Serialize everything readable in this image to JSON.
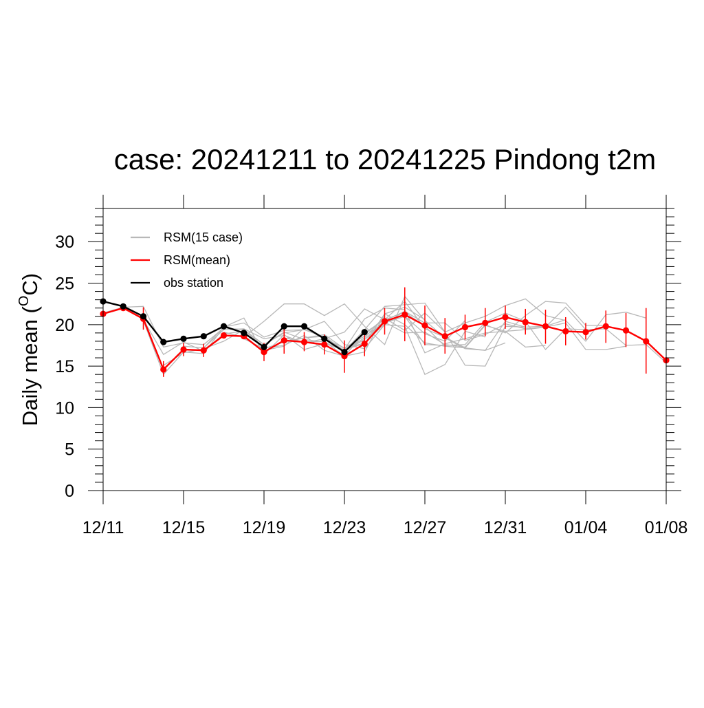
{
  "chart_data": {
    "type": "line",
    "title": "case: 20241211 to 20241225 Pindong t2m",
    "xlabel": "",
    "ylabel_main": "Daily mean (",
    "ylabel_sup": "O",
    "ylabel_unit": "C)",
    "ylim": [
      0,
      34
    ],
    "yticks": [
      0,
      5,
      10,
      15,
      20,
      25,
      30
    ],
    "x_range_days": [
      0,
      28
    ],
    "xtick_days": [
      0,
      4,
      8,
      12,
      16,
      20,
      24,
      28
    ],
    "xtick_labels": [
      "12/11",
      "12/15",
      "12/19",
      "12/23",
      "12/27",
      "12/31",
      "01/04",
      "01/08"
    ],
    "grid": false,
    "legend_position": "top-left",
    "colors": {
      "ensemble": "#b8b8b8",
      "mean": "#ff0000",
      "obs": "#000000"
    },
    "legend": [
      {
        "key": "ens",
        "label": "RSM(15 case)",
        "color": "#b8b8b8"
      },
      {
        "key": "mean",
        "label": "RSM(mean)",
        "color": "#ff0000"
      },
      {
        "key": "obs",
        "label": "obs station",
        "color": "#000000"
      }
    ],
    "obs": {
      "name": "obs station",
      "x": [
        0,
        1,
        2,
        3,
        4,
        5,
        6,
        7,
        8,
        9,
        10,
        11,
        12,
        13
      ],
      "values": [
        22.8,
        22.2,
        21.0,
        17.9,
        18.3,
        18.6,
        19.8,
        19.0,
        17.3,
        19.8,
        19.8,
        18.3,
        16.7,
        19.1
      ]
    },
    "mean": {
      "name": "RSM(mean)",
      "x": [
        0,
        1,
        2,
        3,
        4,
        5,
        6,
        7,
        8,
        9,
        10,
        11,
        12,
        13,
        14,
        15,
        16,
        17,
        18,
        19,
        20,
        21,
        22,
        23,
        24,
        25,
        26,
        27,
        28
      ],
      "values": [
        21.3,
        22.0,
        20.7,
        14.6,
        17.0,
        16.9,
        18.7,
        18.6,
        16.7,
        18.1,
        17.9,
        17.6,
        16.2,
        17.7,
        20.4,
        21.2,
        19.9,
        18.6,
        19.7,
        20.2,
        20.9,
        20.3,
        19.8,
        19.2,
        19.1,
        19.8,
        19.3,
        18.0,
        15.7
      ],
      "err_low": [
        null,
        null,
        19.4,
        13.7,
        16.2,
        16.1,
        null,
        null,
        15.6,
        16.5,
        16.8,
        16.4,
        14.2,
        16.2,
        18.8,
        18.0,
        17.5,
        16.5,
        18.2,
        18.6,
        19.5,
        18.8,
        17.7,
        17.5,
        18.2,
        17.8,
        17.3,
        14.1,
        null
      ],
      "err_high": [
        null,
        null,
        22.1,
        15.6,
        17.8,
        17.7,
        null,
        null,
        17.8,
        19.7,
        19.1,
        18.8,
        18.1,
        19.4,
        22.0,
        24.5,
        22.3,
        20.8,
        21.2,
        22.0,
        22.3,
        21.9,
        21.8,
        20.9,
        20.2,
        21.7,
        21.4,
        22.0,
        null
      ]
    },
    "ensemble": [
      {
        "x0": 0,
        "values": [
          21.4,
          22.1,
          22.2,
          17.3,
          17.8,
          17.6,
          19.6,
          19.4,
          17.6,
          19.0,
          19.4,
          18.5,
          16.9,
          18.4,
          21.0
        ]
      },
      {
        "x0": 1,
        "values": [
          22.0,
          20.6,
          16.4,
          17.9,
          16.8,
          18.9,
          19.2,
          17.6,
          19.1,
          18.2,
          17.9,
          16.8,
          18.2,
          20.5,
          21.6
        ]
      },
      {
        "x0": 2,
        "values": [
          20.5,
          14.0,
          16.7,
          16.5,
          19.7,
          20.8,
          16.4,
          18.8,
          17.0,
          17.7,
          17.0,
          17.7,
          21.3,
          22.1,
          20.6
        ]
      },
      {
        "x0": 3,
        "values": [
          15.1,
          16.6,
          17.1,
          18.0,
          19.4,
          17.2,
          17.5,
          18.7,
          16.9,
          16.2,
          19.0,
          20.6,
          21.5,
          19.8,
          17.4
        ]
      },
      {
        "x0": 4,
        "values": [
          17.4,
          17.2,
          19.4,
          19.5,
          18.3,
          18.7,
          17.8,
          18.3,
          16.9,
          18.2,
          20.3,
          21.0,
          18.9,
          18.0,
          20.5
        ]
      },
      {
        "x0": 5,
        "values": [
          17.2,
          19.7,
          20.2,
          18.5,
          19.3,
          19.4,
          20.4,
          17.6,
          17.1,
          20.0,
          19.8,
          14.0,
          15.2,
          19.2,
          18.5
        ]
      },
      {
        "x0": 6,
        "values": [
          19.1,
          18.5,
          20.4,
          22.5,
          22.5,
          21.1,
          22.5,
          19.8,
          17.6,
          23.4,
          20.5,
          18.4,
          17.1,
          16.9,
          17.8
        ]
      },
      {
        "x0": 7,
        "values": [
          18.3,
          17.1,
          17.9,
          18.4,
          18.6,
          16.8,
          19.4,
          22.2,
          22.4,
          22.6,
          19.1,
          15.1,
          15.0,
          19.8,
          19.7
        ]
      },
      {
        "x0": 8,
        "values": [
          16.9,
          17.4,
          19.6,
          18.3,
          19.1,
          21.9,
          20.6,
          22.8,
          19.5,
          18.5,
          17.2,
          19.9,
          19.2,
          17.3,
          17.5
        ]
      },
      {
        "x0": 9,
        "values": [
          18.4,
          17.9,
          18.0,
          16.2,
          16.7,
          21.3,
          20.0,
          17.8,
          17.4,
          17.2,
          16.9,
          20.4,
          19.7,
          19.8,
          20.6
        ]
      },
      {
        "x0": 10,
        "values": [
          18.4,
          18.8,
          17.1,
          17.8,
          20.1,
          21.6,
          20.2,
          20.2,
          18.1,
          18.8,
          20.1,
          19.5,
          19.7,
          22.1,
          19.4
        ]
      },
      {
        "x0": 11,
        "values": [
          18.3,
          17.2,
          18.6,
          20.3,
          19.0,
          19.1,
          17.6,
          17.3,
          20.0,
          19.0,
          21.1,
          22.8,
          22.6,
          19.9,
          19.9
        ]
      },
      {
        "x0": 12,
        "values": [
          17.0,
          20.7,
          22.0,
          21.8,
          16.6,
          17.7,
          18.3,
          19.0,
          19.2,
          19.4,
          19.7,
          20.2,
          17.0,
          17.0,
          17.4
        ]
      },
      {
        "x0": 13,
        "values": [
          18.8,
          20.8,
          19.3,
          21.4,
          19.1,
          20.2,
          21.0,
          22.3,
          23.1,
          21.1,
          20.5,
          18.0,
          21.2,
          21.5,
          20.8
        ]
      },
      {
        "x0": 14,
        "values": [
          20.2,
          21.0,
          17.6,
          17.5,
          17.6,
          20.3,
          21.4,
          20.4,
          17.0,
          19.5,
          19.4,
          19.5,
          17.5,
          17.6,
          15.4
        ]
      }
    ]
  }
}
